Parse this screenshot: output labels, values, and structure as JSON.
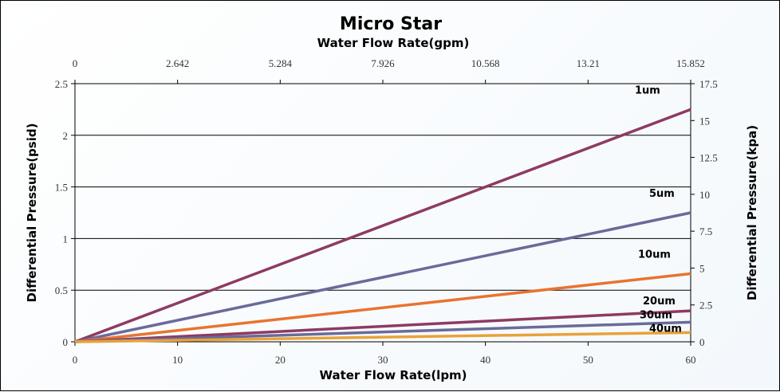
{
  "chart_data": {
    "type": "line",
    "title": "Micro Star",
    "xlabel": "Water Flow Rate(lpm)",
    "x2label": "Water Flow Rate(gpm)",
    "ylabel": "Differential Pressure(psid)",
    "y2label": "Differential Pressure(kpa)",
    "xlim": [
      0,
      60
    ],
    "ylim": [
      0,
      2.5
    ],
    "x_ticks": [
      "0",
      "10",
      "20",
      "30",
      "40",
      "50",
      "60"
    ],
    "x2_ticks": [
      "0",
      "2.642",
      "5.284",
      "7.926",
      "10.568",
      "13.21",
      "15.852"
    ],
    "y_ticks": [
      "0",
      "0.5",
      "1",
      "1.5",
      "2",
      "2.5"
    ],
    "y2_ticks": [
      "0",
      "2.5",
      "5",
      "7.5",
      "10",
      "12.5",
      "15",
      "17.5"
    ],
    "grid": "horizontal",
    "series": [
      {
        "name": "1um",
        "x": [
          0,
          60
        ],
        "values": [
          0,
          2.25
        ],
        "color": "#8e3a63"
      },
      {
        "name": "5um",
        "x": [
          0,
          60
        ],
        "values": [
          0,
          1.25
        ],
        "color": "#6a6a9a"
      },
      {
        "name": "10um",
        "x": [
          0,
          60
        ],
        "values": [
          0,
          0.66
        ],
        "color": "#e8742f"
      },
      {
        "name": "20um",
        "x": [
          0,
          60
        ],
        "values": [
          0,
          0.3
        ],
        "color": "#8e3a63"
      },
      {
        "name": "30um",
        "x": [
          0,
          60
        ],
        "values": [
          0,
          0.19
        ],
        "color": "#6a6a9a"
      },
      {
        "name": "40um",
        "x": [
          0,
          60
        ],
        "values": [
          0,
          0.09
        ],
        "color": "#e8a23a"
      }
    ]
  }
}
